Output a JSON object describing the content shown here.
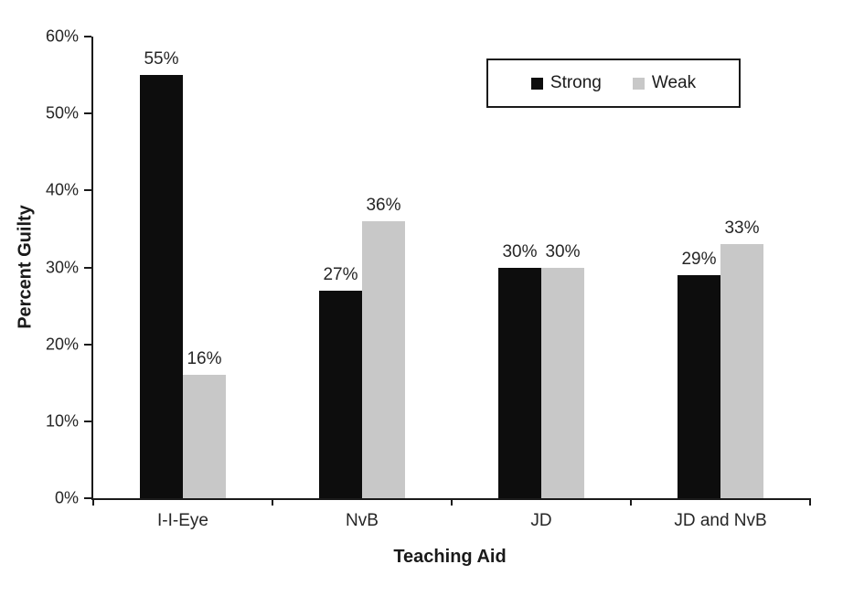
{
  "chart_data": {
    "type": "bar",
    "title": "",
    "xlabel": "Teaching Aid",
    "ylabel": "Percent Guilty",
    "categories": [
      "I-I-Eye",
      "NvB",
      "JD",
      "JD and NvB"
    ],
    "series": [
      {
        "name": "Strong",
        "color": "#0d0d0d",
        "values": [
          55,
          27,
          30,
          29
        ]
      },
      {
        "name": "Weak",
        "color": "#c8c8c8",
        "values": [
          16,
          36,
          30,
          33
        ]
      }
    ],
    "data_labels": {
      "Strong": [
        "55%",
        "27%",
        "30%",
        "29%"
      ],
      "Weak": [
        "16%",
        "36%",
        "30%",
        "33%"
      ]
    },
    "ylim": [
      0,
      60
    ],
    "ytick_step": 10,
    "ytick_labels": [
      "0%",
      "10%",
      "20%",
      "30%",
      "40%",
      "50%",
      "60%"
    ],
    "grid": false,
    "legend_position": "top-right"
  }
}
